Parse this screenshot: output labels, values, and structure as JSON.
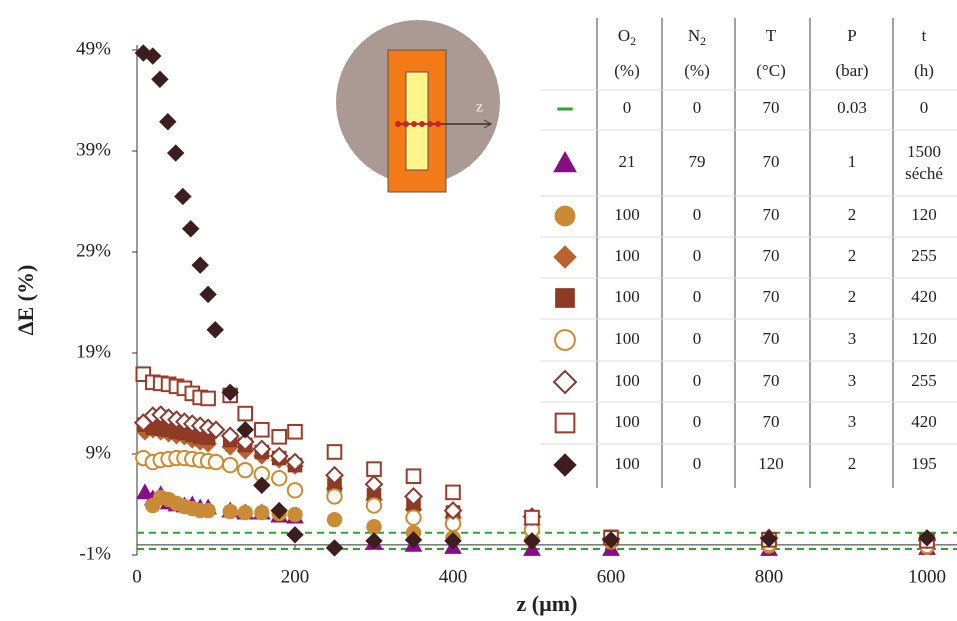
{
  "chart_data": {
    "type": "scatter",
    "xlabel": "z (µm)",
    "ylabel": "ΔE (%)",
    "xlim": [
      0,
      1000
    ],
    "xticks": [
      0,
      200,
      400,
      600,
      800,
      1000
    ],
    "ylim": [
      -1,
      49
    ],
    "yticks": [
      {
        "value": -1,
        "label": "-1%"
      },
      {
        "value": 9,
        "label": "9%"
      },
      {
        "value": 19,
        "label": "19%"
      },
      {
        "value": 29,
        "label": "29%"
      },
      {
        "value": 39,
        "label": "39%"
      },
      {
        "value": 49,
        "label": "49%"
      }
    ],
    "series": [
      {
        "marker": "hline",
        "color": "#2aa52a",
        "values": [
          1.2,
          -0.4
        ]
      },
      {
        "marker": "triangle",
        "filled": true,
        "color": "#880e87",
        "x": [
          10,
          20,
          30,
          40,
          50,
          60,
          70,
          80,
          90,
          118,
          137,
          158,
          180,
          200,
          300,
          350,
          400,
          500,
          600,
          800,
          1000
        ],
        "values": [
          5.2,
          4.6,
          5.0,
          4.2,
          4.0,
          3.9,
          4.0,
          3.7,
          3.7,
          3.4,
          3.2,
          3.2,
          2.9,
          2.8,
          0.2,
          0.0,
          -0.2,
          -0.4,
          -0.4,
          -0.4,
          -0.3
        ]
      },
      {
        "marker": "circle",
        "filled": true,
        "color": "#c98b35",
        "x": [
          20,
          30,
          40,
          50,
          60,
          70,
          80,
          90,
          118,
          137,
          158,
          180,
          200,
          250,
          300,
          350,
          400,
          500,
          600,
          800,
          1000
        ],
        "values": [
          3.9,
          4.7,
          4.5,
          4.1,
          3.8,
          3.6,
          3.4,
          3.4,
          3.3,
          3.2,
          3.2,
          3.1,
          3.0,
          2.5,
          1.8,
          1.2,
          0.7,
          0.5,
          0.3,
          -0.1,
          -0.2
        ]
      },
      {
        "marker": "diamond",
        "filled": true,
        "color": "#b9632e",
        "x": [
          10,
          20,
          30,
          40,
          50,
          60,
          70,
          80,
          90,
          118,
          137,
          158,
          180,
          200,
          250,
          300,
          350,
          400,
          500,
          600,
          800,
          1000
        ],
        "values": [
          11.2,
          11.4,
          11.2,
          11.0,
          10.8,
          10.7,
          10.4,
          10.2,
          10.0,
          9.7,
          9.3,
          8.8,
          8.4,
          7.8,
          5.6,
          4.5,
          3.5,
          2.7,
          2.0,
          0.3,
          0.1,
          0.0
        ]
      },
      {
        "marker": "square",
        "filled": true,
        "color": "#8e3b24",
        "x": [
          10,
          20,
          30,
          40,
          50,
          60,
          70,
          80,
          90,
          118,
          137,
          158,
          180,
          200,
          250,
          300,
          350,
          400,
          500,
          600,
          800,
          1000
        ],
        "values": [
          11.9,
          11.6,
          11.5,
          11.4,
          11.2,
          11.1,
          10.9,
          10.7,
          10.6,
          10.4,
          9.9,
          9.2,
          8.6,
          7.9,
          5.9,
          4.9,
          4.1,
          3.2,
          2.5,
          0.8,
          0.4,
          0.2
        ]
      },
      {
        "marker": "circle",
        "filled": false,
        "color": "#d08a2e",
        "x": [
          8,
          20,
          30,
          40,
          50,
          60,
          70,
          80,
          90,
          100,
          118,
          137,
          158,
          180,
          200,
          250,
          300,
          350,
          400,
          500,
          600,
          800,
          1000
        ],
        "values": [
          8.6,
          8.2,
          8.4,
          8.5,
          8.6,
          8.6,
          8.5,
          8.4,
          8.3,
          8.2,
          7.9,
          7.4,
          7.0,
          6.6,
          5.4,
          4.8,
          3.9,
          2.7,
          2.1,
          1.5,
          0.5,
          0.1,
          -0.1
        ]
      },
      {
        "marker": "diamond",
        "filled": false,
        "color": "#8a3a30",
        "x": [
          8,
          20,
          30,
          40,
          50,
          60,
          70,
          80,
          90,
          100,
          118,
          137,
          158,
          180,
          200,
          250,
          300,
          350,
          400,
          500,
          600,
          800,
          1000
        ],
        "values": [
          12.1,
          12.8,
          12.9,
          12.6,
          12.4,
          12.2,
          12.0,
          11.8,
          11.6,
          11.4,
          10.8,
          10.2,
          9.5,
          8.8,
          8.2,
          6.9,
          6.0,
          4.8,
          3.4,
          2.8,
          0.6,
          0.7,
          0.5
        ]
      },
      {
        "marker": "square",
        "filled": false,
        "color": "#9b3b2a",
        "x": [
          8,
          20,
          30,
          40,
          50,
          60,
          70,
          80,
          90,
          118,
          137,
          158,
          180,
          200,
          250,
          300,
          350,
          400,
          500,
          600,
          800,
          1000
        ],
        "values": [
          16.9,
          16.1,
          16.0,
          15.9,
          15.7,
          15.5,
          15.0,
          14.6,
          14.5,
          14.8,
          13.0,
          11.4,
          10.7,
          11.2,
          9.2,
          7.5,
          6.8,
          5.2,
          2.7,
          0.7,
          0.5,
          0.4
        ]
      },
      {
        "marker": "diamond",
        "filled": true,
        "color": "#3d1e1e",
        "x": [
          8,
          20,
          29,
          39,
          49,
          58,
          68,
          80,
          90,
          99,
          118,
          137,
          158,
          180,
          200,
          250,
          300,
          350,
          400,
          500,
          600,
          800,
          1000
        ],
        "values": [
          48.7,
          48.4,
          46.1,
          41.9,
          38.8,
          34.5,
          31.3,
          27.7,
          24.8,
          21.3,
          15.1,
          11.4,
          5.9,
          3.4,
          1.0,
          -0.3,
          0.4,
          0.5,
          0.4,
          0.4,
          0.5,
          0.6,
          0.7
        ]
      }
    ],
    "legend_table": {
      "header": [
        {
          "main": "O",
          "sub": "2",
          "unit": "(%)"
        },
        {
          "main": "N",
          "sub": "2",
          "unit": "(%)"
        },
        {
          "main": "T",
          "unit": "(°C)"
        },
        {
          "main": "P",
          "unit": "(bar)"
        },
        {
          "main": "t",
          "unit": "(h)"
        }
      ],
      "rows": [
        [
          "0",
          "0",
          "70",
          "0.03",
          "0"
        ],
        [
          "21",
          "79",
          "70",
          "1",
          [
            "1500",
            "séché"
          ]
        ],
        [
          "100",
          "0",
          "70",
          "2",
          "120"
        ],
        [
          "100",
          "0",
          "70",
          "2",
          "255"
        ],
        [
          "100",
          "0",
          "70",
          "2",
          "420"
        ],
        [
          "100",
          "0",
          "70",
          "3",
          "120"
        ],
        [
          "100",
          "0",
          "70",
          "3",
          "255"
        ],
        [
          "100",
          "0",
          "70",
          "3",
          "420"
        ],
        [
          "100",
          "0",
          "120",
          "2",
          "195"
        ]
      ]
    }
  },
  "inset": {
    "label": "z"
  }
}
